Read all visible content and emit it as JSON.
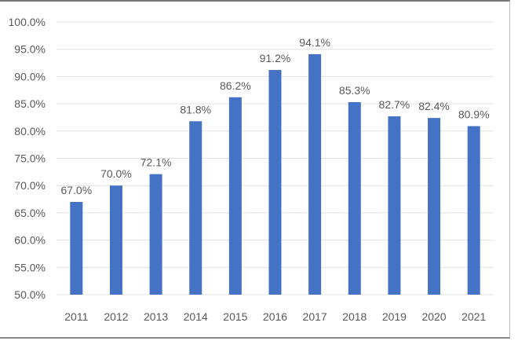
{
  "chart_data": {
    "type": "bar",
    "title": "",
    "xlabel": "",
    "ylabel": "",
    "categories": [
      "2011",
      "2012",
      "2013",
      "2014",
      "2015",
      "2016",
      "2017",
      "2018",
      "2019",
      "2020",
      "2021"
    ],
    "values": [
      67.0,
      70.0,
      72.1,
      81.8,
      86.2,
      91.2,
      94.1,
      85.3,
      82.7,
      82.4,
      80.9
    ],
    "data_labels": [
      "67.0%",
      "70.0%",
      "72.1%",
      "81.8%",
      "86.2%",
      "91.2%",
      "94.1%",
      "85.3%",
      "82.7%",
      "82.4%",
      "80.9%"
    ],
    "ylim": [
      50,
      100
    ],
    "yticks": [
      50,
      55,
      60,
      65,
      70,
      75,
      80,
      85,
      90,
      95,
      100
    ],
    "ytick_labels": [
      "50.0%",
      "55.0%",
      "60.0%",
      "65.0%",
      "70.0%",
      "75.0%",
      "80.0%",
      "85.0%",
      "90.0%",
      "95.0%",
      "100.0%"
    ],
    "grid": true,
    "legend": "none",
    "colors": {
      "bar": "#4472C4",
      "grid": "#E0E0E0",
      "text": "#595959"
    }
  }
}
